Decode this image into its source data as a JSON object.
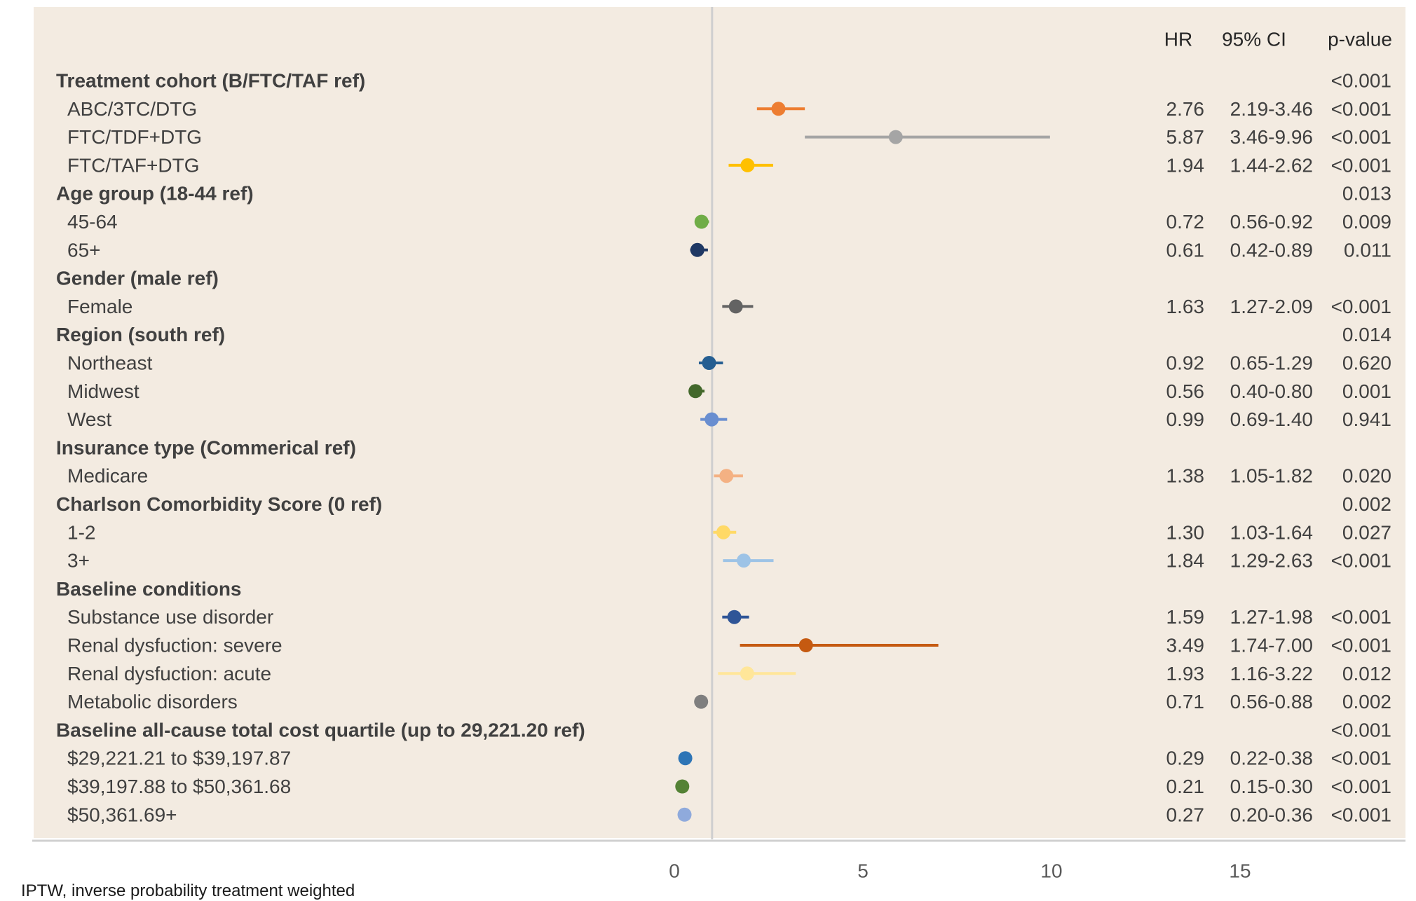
{
  "title_fragment": "",
  "footnote": "IPTW, inverse probability treatment weighted",
  "chart_data": {
    "type": "forest",
    "columns": {
      "hr": "HR",
      "ci": "95% CI",
      "p": "p-value"
    },
    "xlim": [
      0,
      15
    ],
    "xticks": [
      0,
      5,
      10,
      15
    ],
    "reference_line": 1,
    "grid": false,
    "rows": [
      {
        "label": "Treatment cohort (B/FTC/TAF ref)",
        "header": true,
        "p": "<0.001"
      },
      {
        "label": "ABC/3TC/DTG",
        "hr": 2.76,
        "lo": 2.19,
        "hi": 3.46,
        "hr_text": "2.76",
        "ci": "2.19-3.46",
        "p": "<0.001",
        "color": "#ed7d31"
      },
      {
        "label": "FTC/TDF+DTG",
        "hr": 5.87,
        "lo": 3.46,
        "hi": 9.96,
        "hr_text": "5.87",
        "ci": "3.46-9.96",
        "p": "<0.001",
        "color": "#a5a5a5"
      },
      {
        "label": "FTC/TAF+DTG",
        "hr": 1.94,
        "lo": 1.44,
        "hi": 2.62,
        "hr_text": "1.94",
        "ci": "1.44-2.62",
        "p": "<0.001",
        "color": "#ffc000"
      },
      {
        "label": "Age group (18-44 ref)",
        "header": true,
        "p": "0.013"
      },
      {
        "label": "45-64",
        "hr": 0.72,
        "lo": 0.56,
        "hi": 0.92,
        "hr_text": "0.72",
        "ci": "0.56-0.92",
        "p": "0.009",
        "color": "#70ad47"
      },
      {
        "label": "65+",
        "hr": 0.61,
        "lo": 0.42,
        "hi": 0.89,
        "hr_text": "0.61",
        "ci": "0.42-0.89",
        "p": "0.011",
        "color": "#1f3864"
      },
      {
        "label": "Gender (male ref)",
        "header": true,
        "p": ""
      },
      {
        "label": "Female",
        "hr": 1.63,
        "lo": 1.27,
        "hi": 2.09,
        "hr_text": "1.63",
        "ci": "1.27-2.09",
        "p": "<0.001",
        "color": "#636363"
      },
      {
        "label": "Region (south ref)",
        "header": true,
        "p": "0.014"
      },
      {
        "label": "Northeast",
        "hr": 0.92,
        "lo": 0.65,
        "hi": 1.29,
        "hr_text": "0.92",
        "ci": "0.65-1.29",
        "p": "0.620",
        "color": "#255e91"
      },
      {
        "label": "Midwest",
        "hr": 0.56,
        "lo": 0.4,
        "hi": 0.8,
        "hr_text": "0.56",
        "ci": "0.40-0.80",
        "p": "0.001",
        "color": "#43682b"
      },
      {
        "label": "West",
        "hr": 0.99,
        "lo": 0.69,
        "hi": 1.4,
        "hr_text": "0.99",
        "ci": "0.69-1.40",
        "p": "0.941",
        "color": "#698ed0"
      },
      {
        "label": "Insurance type (Commerical ref)",
        "header": true,
        "p": ""
      },
      {
        "label": "Medicare",
        "hr": 1.38,
        "lo": 1.05,
        "hi": 1.82,
        "hr_text": "1.38",
        "ci": "1.05-1.82",
        "p": "0.020",
        "color": "#f4b183"
      },
      {
        "label": "Charlson Comorbidity Score (0 ref)",
        "header": true,
        "p": "0.002"
      },
      {
        "label": "1-2",
        "hr": 1.3,
        "lo": 1.03,
        "hi": 1.64,
        "hr_text": "1.30",
        "ci": "1.03-1.64",
        "p": "0.027",
        "color": "#ffd966"
      },
      {
        "label": "3+",
        "hr": 1.84,
        "lo": 1.29,
        "hi": 2.63,
        "hr_text": "1.84",
        "ci": "1.29-2.63",
        "p": "<0.001",
        "color": "#9dc3e6"
      },
      {
        "label": "Baseline conditions",
        "header": true,
        "p": ""
      },
      {
        "label": "Substance use disorder",
        "hr": 1.59,
        "lo": 1.27,
        "hi": 1.98,
        "hr_text": "1.59",
        "ci": "1.27-1.98",
        "p": "<0.001",
        "color": "#2f5597"
      },
      {
        "label": "Renal dysfuction: severe",
        "hr": 3.49,
        "lo": 1.74,
        "hi": 7.0,
        "hr_text": "3.49",
        "ci": "1.74-7.00",
        "p": "<0.001",
        "color": "#c55a11"
      },
      {
        "label": "Renal dysfuction: acute",
        "hr": 1.93,
        "lo": 1.16,
        "hi": 3.22,
        "hr_text": "1.93",
        "ci": "1.16-3.22",
        "p": "0.012",
        "color": "#ffe699"
      },
      {
        "label": "Metabolic disorders",
        "hr": 0.71,
        "lo": 0.56,
        "hi": 0.88,
        "hr_text": "0.71",
        "ci": "0.56-0.88",
        "p": "0.002",
        "color": "#7f7f7f"
      },
      {
        "label": "Baseline all-cause total cost quartile (up to 29,221.20 ref)",
        "header": true,
        "p": "<0.001"
      },
      {
        "label": "$29,221.21 to $39,197.87",
        "hr": 0.29,
        "lo": 0.22,
        "hi": 0.38,
        "hr_text": "0.29",
        "ci": "0.22-0.38",
        "p": "<0.001",
        "color": "#2e75b6"
      },
      {
        "label": "$39,197.88 to $50,361.68",
        "hr": 0.21,
        "lo": 0.15,
        "hi": 0.3,
        "hr_text": "0.21",
        "ci": "0.15-0.30",
        "p": "<0.001",
        "color": "#548235"
      },
      {
        "label": "$50,361.69+",
        "hr": 0.27,
        "lo": 0.2,
        "hi": 0.36,
        "hr_text": "0.27",
        "ci": "0.20-0.36",
        "p": "<0.001",
        "color": "#8faadc"
      }
    ]
  }
}
